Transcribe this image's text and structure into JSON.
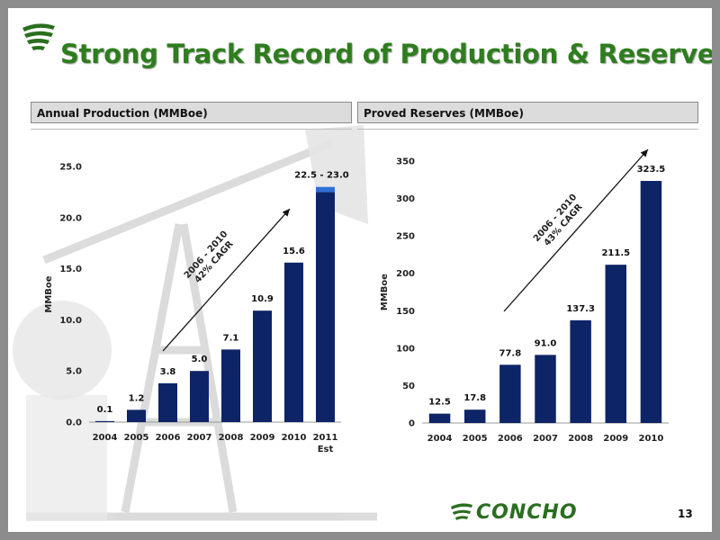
{
  "title": "Strong Track Record of Production & Reserve Growth",
  "brand": "CONCHO",
  "page_number": "13",
  "colors": {
    "bar": "#0d2466",
    "bar_highlight": "#2e6fd8",
    "title": "#2e7d1e",
    "brand": "#2a6e1f"
  },
  "icons": [
    "concho-logo-icon",
    "oil-pump-background"
  ],
  "chart_data": [
    {
      "type": "bar",
      "panel_title": "Annual Production (MMBoe)",
      "ylabel": "MMBoe",
      "ylim": [
        0,
        25
      ],
      "yticks": [
        "0.0",
        "5.0",
        "10.0",
        "15.0",
        "20.0",
        "25.0"
      ],
      "categories": [
        "2004",
        "2005",
        "2006",
        "2007",
        "2008",
        "2009",
        "2010",
        "2011\nEst"
      ],
      "values": [
        0.1,
        1.2,
        3.8,
        5.0,
        7.1,
        10.9,
        15.6,
        23.0
      ],
      "value_range_last": [
        22.5,
        23.0
      ],
      "data_labels": [
        "0.1",
        "1.2",
        "3.8",
        "5.0",
        "7.1",
        "10.9",
        "15.6",
        "22.5 - 23.0"
      ],
      "annotation": [
        "2006 - 2010",
        "42% CAGR"
      ]
    },
    {
      "type": "bar",
      "panel_title": "Proved Reserves (MMBoe)",
      "ylabel": "MMBoe",
      "ylim": [
        0,
        350
      ],
      "yticks": [
        "0",
        "50",
        "100",
        "150",
        "200",
        "250",
        "300",
        "350"
      ],
      "categories": [
        "2004",
        "2005",
        "2006",
        "2007",
        "2008",
        "2009",
        "2010"
      ],
      "values": [
        12.5,
        17.8,
        77.8,
        91.0,
        137.3,
        211.5,
        323.5
      ],
      "data_labels": [
        "12.5",
        "17.8",
        "77.8",
        "91.0",
        "137.3",
        "211.5",
        "323.5"
      ],
      "annotation": [
        "2006 - 2010",
        "43% CAGR"
      ]
    }
  ]
}
